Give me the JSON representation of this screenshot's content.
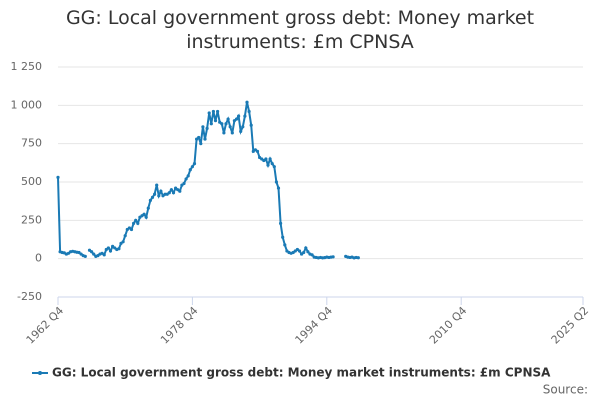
{
  "chart_data": {
    "type": "line",
    "title": "GG: Local government gross debt: Money market instruments: £m CPNSA",
    "source_label": "Source:",
    "x": [
      "1962 Q4",
      "1963 Q1",
      "1963 Q2",
      "1963 Q3",
      "1963 Q4",
      "1964 Q1",
      "1964 Q2",
      "1964 Q3",
      "1964 Q4",
      "1965 Q1",
      "1965 Q2",
      "1965 Q3",
      "1965 Q4",
      "1966 Q1",
      "1966 Q2",
      "1966 Q3",
      "1966 Q4",
      "1967 Q1",
      "1967 Q2",
      "1967 Q3",
      "1967 Q4",
      "1968 Q1",
      "1968 Q2",
      "1968 Q3",
      "1968 Q4",
      "1969 Q1",
      "1969 Q2",
      "1969 Q3",
      "1969 Q4",
      "1970 Q1",
      "1970 Q2",
      "1970 Q3",
      "1970 Q4",
      "1971 Q1",
      "1971 Q2",
      "1971 Q3",
      "1971 Q4",
      "1972 Q1",
      "1972 Q2",
      "1972 Q3",
      "1972 Q4",
      "1973 Q1",
      "1973 Q2",
      "1973 Q3",
      "1973 Q4",
      "1974 Q1",
      "1974 Q2",
      "1974 Q3",
      "1974 Q4",
      "1975 Q1",
      "1975 Q2",
      "1975 Q3",
      "1975 Q4",
      "1976 Q1",
      "1976 Q2",
      "1976 Q3",
      "1976 Q4",
      "1977 Q1",
      "1977 Q2",
      "1977 Q3",
      "1977 Q4",
      "1978 Q1",
      "1978 Q2",
      "1978 Q3",
      "1978 Q4",
      "1979 Q1",
      "1979 Q2",
      "1979 Q3",
      "1979 Q4",
      "1980 Q1",
      "1980 Q2",
      "1980 Q3",
      "1980 Q4",
      "1981 Q1",
      "1981 Q2",
      "1981 Q3",
      "1981 Q4",
      "1982 Q1",
      "1982 Q2",
      "1982 Q3",
      "1982 Q4",
      "1983 Q1",
      "1983 Q2",
      "1983 Q3",
      "1983 Q4",
      "1984 Q1",
      "1984 Q2",
      "1984 Q3",
      "1984 Q4",
      "1985 Q1",
      "1985 Q2",
      "1985 Q3",
      "1985 Q4",
      "1986 Q1",
      "1986 Q2",
      "1986 Q3",
      "1986 Q4",
      "1987 Q1",
      "1987 Q2",
      "1987 Q3",
      "1987 Q4",
      "1988 Q1",
      "1988 Q2",
      "1988 Q3",
      "1988 Q4",
      "1989 Q1",
      "1989 Q2",
      "1989 Q3",
      "1989 Q4",
      "1990 Q1",
      "1990 Q2",
      "1990 Q3",
      "1990 Q4",
      "1991 Q1",
      "1991 Q2",
      "1991 Q3",
      "1991 Q4",
      "1992 Q1",
      "1992 Q2",
      "1992 Q3",
      "1992 Q4",
      "1993 Q1",
      "1993 Q2",
      "1993 Q3",
      "1993 Q4",
      "1994 Q1",
      "1994 Q2",
      "1994 Q3",
      "1994 Q4",
      "1995 Q1",
      "1995 Q2",
      "1995 Q3",
      "1995 Q4",
      "1996 Q1",
      "1996 Q2",
      "1996 Q3",
      "1996 Q4",
      "1997 Q1",
      "1997 Q2",
      "1997 Q3",
      "1997 Q4",
      "1998 Q1",
      "1998 Q2",
      "1998 Q3"
    ],
    "series": [
      {
        "name": "GG: Local government gross debt: Money market instruments: £m CPNSA",
        "color": "#1a7ab5",
        "values": [
          530,
          45,
          40,
          38,
          30,
          35,
          45,
          48,
          45,
          42,
          40,
          30,
          20,
          15,
          null,
          55,
          45,
          30,
          15,
          20,
          30,
          35,
          25,
          60,
          70,
          50,
          80,
          70,
          60,
          65,
          100,
          110,
          150,
          190,
          200,
          190,
          230,
          250,
          230,
          270,
          280,
          290,
          270,
          330,
          380,
          400,
          420,
          480,
          410,
          440,
          410,
          420,
          420,
          430,
          450,
          430,
          460,
          450,
          440,
          480,
          490,
          520,
          540,
          580,
          600,
          620,
          780,
          790,
          750,
          860,
          780,
          850,
          950,
          880,
          960,
          900,
          960,
          890,
          880,
          820,
          880,
          910,
          860,
          820,
          900,
          910,
          930,
          830,
          860,
          930,
          1020,
          960,
          870,
          700,
          710,
          700,
          660,
          650,
          640,
          650,
          610,
          650,
          620,
          600,
          500,
          460,
          230,
          140,
          90,
          50,
          40,
          35,
          40,
          50,
          60,
          50,
          30,
          40,
          70,
          45,
          30,
          25,
          10,
          8,
          5,
          8,
          5,
          7,
          10,
          8,
          10,
          12,
          null,
          null,
          null,
          null,
          null,
          15,
          10,
          8,
          10,
          5,
          8,
          6
        ]
      }
    ],
    "xlim": [
      "1962 Q4",
      "2025 Q2"
    ],
    "xticks": [
      "1962 Q4",
      "1978 Q4",
      "1994 Q4",
      "2010 Q4",
      "2025 Q2"
    ],
    "ylim": [
      -250,
      1250
    ],
    "yticks": [
      -250,
      0,
      250,
      500,
      750,
      {
        "value": 1000,
        "label": "1 000"
      },
      {
        "value": 1250,
        "label": "1 250"
      }
    ],
    "grid": true,
    "legend": "bottom"
  }
}
